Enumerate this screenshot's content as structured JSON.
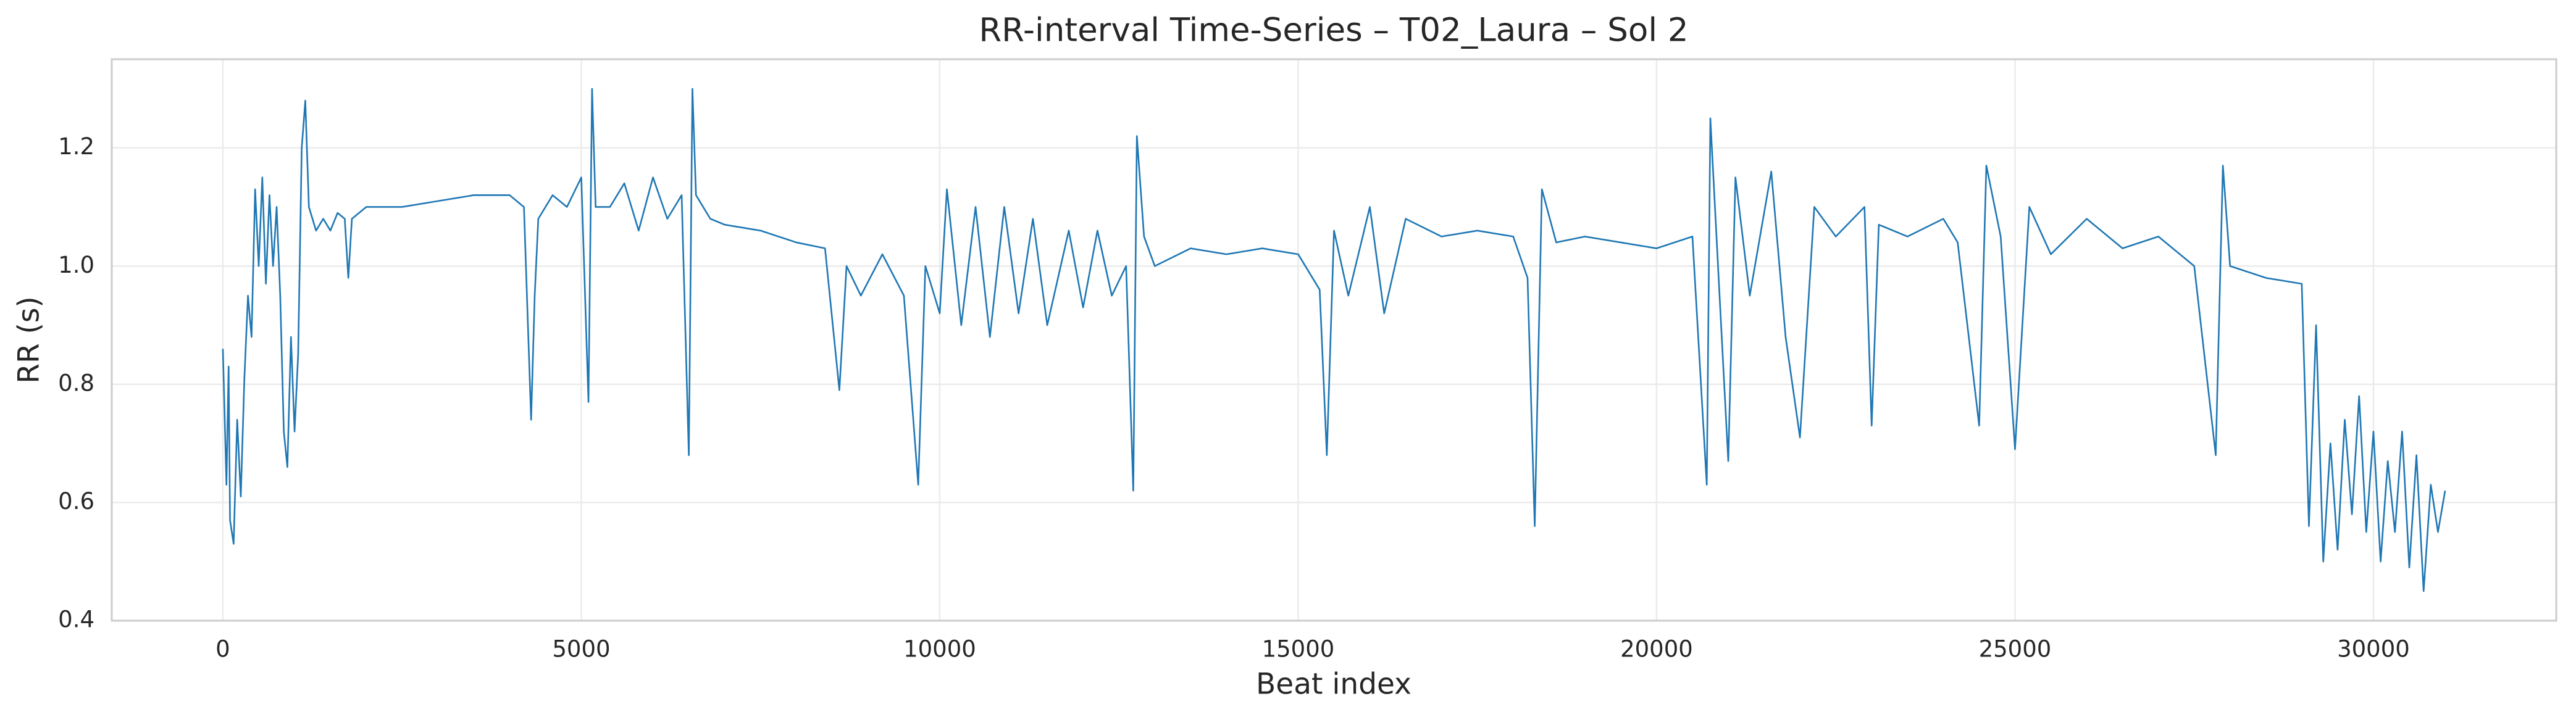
{
  "chart_data": {
    "type": "line",
    "title": "RR-interval Time-Series – T02_Laura – Sol 2",
    "xlabel": "Beat index",
    "ylabel": "RR (s)",
    "color": "#1f77b4",
    "grid": true,
    "xlim": [
      -1550,
      32550
    ],
    "ylim": [
      0.4,
      1.35
    ],
    "xticks": [
      0,
      5000,
      10000,
      15000,
      20000,
      25000,
      30000
    ],
    "yticks": [
      0.4,
      0.6,
      0.8,
      {
        "value": 1,
        "label": "1.0"
      },
      1.2
    ],
    "x": [
      0,
      50,
      80,
      100,
      150,
      200,
      250,
      300,
      350,
      400,
      450,
      500,
      550,
      600,
      650,
      700,
      750,
      800,
      850,
      900,
      950,
      1000,
      1050,
      1100,
      1150,
      1200,
      1300,
      1400,
      1500,
      1600,
      1700,
      1750,
      1800,
      2000,
      2500,
      3000,
      3500,
      4000,
      4200,
      4300,
      4350,
      4400,
      4600,
      4800,
      5000,
      5100,
      5150,
      5200,
      5400,
      5600,
      5800,
      6000,
      6200,
      6400,
      6500,
      6550,
      6600,
      6800,
      7000,
      7500,
      8000,
      8400,
      8600,
      8700,
      8900,
      9200,
      9500,
      9700,
      9800,
      10000,
      10100,
      10300,
      10500,
      10700,
      10900,
      11100,
      11300,
      11500,
      11800,
      12000,
      12200,
      12400,
      12600,
      12700,
      12750,
      12850,
      13000,
      13500,
      14000,
      14500,
      15000,
      15300,
      15400,
      15500,
      15700,
      16000,
      16200,
      16500,
      17000,
      17500,
      18000,
      18200,
      18300,
      18400,
      18600,
      19000,
      19500,
      20000,
      20500,
      20700,
      20750,
      20900,
      21000,
      21100,
      21300,
      21600,
      21800,
      22000,
      22200,
      22500,
      22900,
      23000,
      23100,
      23500,
      24000,
      24200,
      24500,
      24600,
      24800,
      25000,
      25200,
      25500,
      26000,
      26500,
      27000,
      27500,
      27800,
      27900,
      28000,
      28500,
      29000,
      29100,
      29200,
      29300,
      29400,
      29500,
      29600,
      29700,
      29800,
      29900,
      30000,
      30100,
      30200,
      30300,
      30400,
      30500,
      30600,
      30700,
      30800,
      30900,
      31000
    ],
    "values": [
      0.86,
      0.63,
      0.83,
      0.57,
      0.53,
      0.74,
      0.61,
      0.81,
      0.95,
      0.88,
      1.13,
      1.0,
      1.15,
      0.97,
      1.12,
      1.0,
      1.1,
      0.95,
      0.72,
      0.66,
      0.88,
      0.72,
      0.85,
      1.2,
      1.28,
      1.1,
      1.06,
      1.08,
      1.06,
      1.09,
      1.08,
      0.98,
      1.08,
      1.1,
      1.1,
      1.11,
      1.12,
      1.12,
      1.1,
      0.74,
      0.95,
      1.08,
      1.12,
      1.1,
      1.15,
      0.77,
      1.3,
      1.1,
      1.1,
      1.14,
      1.06,
      1.15,
      1.08,
      1.12,
      0.68,
      1.3,
      1.12,
      1.08,
      1.07,
      1.06,
      1.04,
      1.03,
      0.79,
      1.0,
      0.95,
      1.02,
      0.95,
      0.63,
      1.0,
      0.92,
      1.13,
      0.9,
      1.1,
      0.88,
      1.1,
      0.92,
      1.08,
      0.9,
      1.06,
      0.93,
      1.06,
      0.95,
      1.0,
      0.62,
      1.22,
      1.05,
      1.0,
      1.03,
      1.02,
      1.03,
      1.02,
      0.96,
      0.68,
      1.06,
      0.95,
      1.1,
      0.92,
      1.08,
      1.05,
      1.06,
      1.05,
      0.98,
      0.56,
      1.13,
      1.04,
      1.05,
      1.04,
      1.03,
      1.05,
      0.63,
      1.25,
      0.9,
      0.67,
      1.15,
      0.95,
      1.16,
      0.88,
      0.71,
      1.1,
      1.05,
      1.1,
      0.73,
      1.07,
      1.05,
      1.08,
      1.04,
      0.73,
      1.17,
      1.05,
      0.69,
      1.1,
      1.02,
      1.08,
      1.03,
      1.05,
      1.0,
      0.68,
      1.17,
      1.0,
      0.98,
      0.97,
      0.56,
      0.9,
      0.5,
      0.7,
      0.52,
      0.74,
      0.58,
      0.78,
      0.55,
      0.72,
      0.5,
      0.67,
      0.55,
      0.72,
      0.49,
      0.68,
      0.45,
      0.63,
      0.55,
      0.62
    ]
  }
}
